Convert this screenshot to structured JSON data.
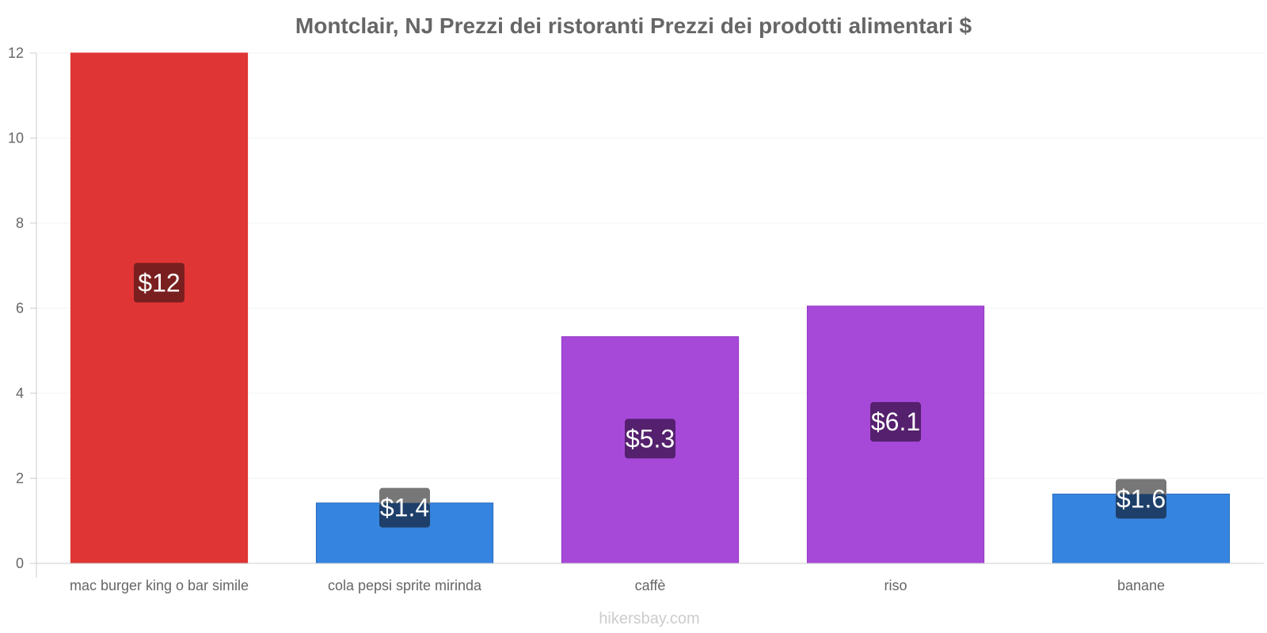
{
  "chart_data": {
    "type": "bar",
    "title": "Montclair, NJ Prezzi dei ristoranti Prezzi dei prodotti alimentari $",
    "categories": [
      "mac burger king o bar simile",
      "cola pepsi sprite mirinda",
      "caffè",
      "riso",
      "banane"
    ],
    "values": [
      12,
      1.42,
      5.33,
      6.05,
      1.63
    ],
    "value_labels": [
      "$12",
      "$1.4",
      "$5.3",
      "$6.1",
      "$1.6"
    ],
    "bar_colors": [
      "#e03535",
      "#3584e0",
      "#a649d9",
      "#a649d9",
      "#3584e0"
    ],
    "bar_border_colors": [
      "#e03535",
      "#2a6bbf",
      "#9236c4",
      "#9236c4",
      "#2a6bbf"
    ],
    "label_bg_colors": [
      "#7a1f1f",
      "#1d3f6a",
      "#55206e",
      "#55206e",
      "#1d3f6a"
    ],
    "label_tab_color": "#777777",
    "ylim": [
      0,
      12
    ],
    "yticks": [
      0,
      2,
      4,
      6,
      8,
      10,
      12
    ],
    "grid": true,
    "xlabel": "",
    "ylabel": ""
  },
  "footer": "hikersbay.com"
}
